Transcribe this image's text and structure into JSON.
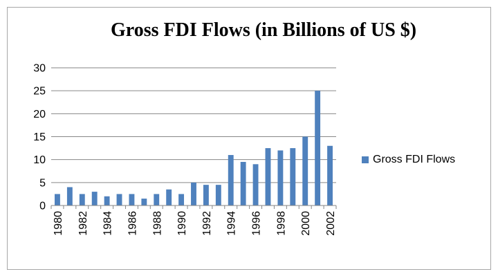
{
  "chart_data": {
    "type": "bar",
    "title": "Gross FDI Flows (in Billions of US $)",
    "categories": [
      "1980",
      "1981",
      "1982",
      "1983",
      "1984",
      "1985",
      "1986",
      "1987",
      "1988",
      "1989",
      "1990",
      "1991",
      "1992",
      "1993",
      "1994",
      "1995",
      "1996",
      "1997",
      "1998",
      "1999",
      "2000",
      "2001",
      "2002"
    ],
    "tick_labels_x": [
      "1980",
      "1982",
      "1984",
      "1986",
      "1988",
      "1990",
      "1992",
      "1994",
      "1996",
      "1998",
      "2000",
      "2002"
    ],
    "series": [
      {
        "name": "Gross FDI Flows",
        "color": "#4f81bd",
        "values": [
          2.5,
          4,
          2.5,
          3,
          2,
          2.5,
          2.5,
          1.5,
          2.5,
          3.5,
          2.5,
          5,
          4.5,
          4.5,
          11,
          9.5,
          9,
          12.5,
          12,
          12.5,
          15,
          25,
          13
        ]
      }
    ],
    "ylim": [
      0,
      30
    ],
    "yticks": [
      0,
      5,
      10,
      15,
      20,
      25,
      30
    ],
    "grid": true,
    "legend_position": "right",
    "xlabel": "",
    "ylabel": ""
  }
}
